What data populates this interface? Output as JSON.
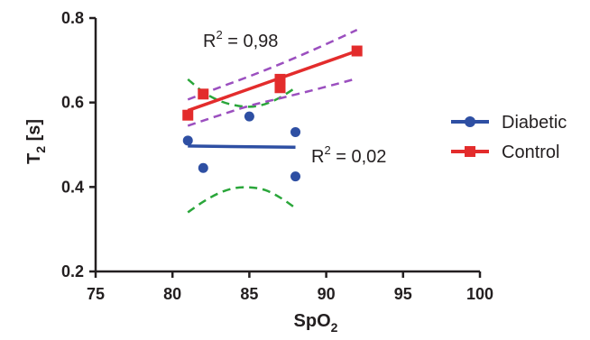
{
  "chart_data": {
    "type": "scatter",
    "xlabel": {
      "main": "SpO",
      "sub": "2"
    },
    "ylabel": {
      "main": "T",
      "sub": "2",
      "suffix": " [s]"
    },
    "xlim": [
      75,
      100
    ],
    "ylim": [
      0.2,
      0.8
    ],
    "x_ticks": [
      75,
      80,
      85,
      90,
      95,
      100
    ],
    "x_tick_labels": [
      "75",
      "80",
      "85",
      "90",
      "95",
      "100"
    ],
    "y_ticks": [
      0.2,
      0.4,
      0.6,
      0.8
    ],
    "y_tick_labels": [
      "0.2",
      "0.4",
      "0.6",
      "0.8"
    ],
    "grid": false,
    "legend_position": "right",
    "series": [
      {
        "name": "Diabetic",
        "marker": "circle",
        "color": "#2e4fa3",
        "points": [
          {
            "x": 81,
            "y": 0.51
          },
          {
            "x": 82,
            "y": 0.445
          },
          {
            "x": 85,
            "y": 0.567
          },
          {
            "x": 88,
            "y": 0.53
          },
          {
            "x": 88,
            "y": 0.425
          }
        ],
        "fit": {
          "x": [
            81,
            88
          ],
          "y": [
            0.497,
            0.494
          ]
        },
        "band_color": "#2aa63a",
        "band_upper": {
          "x": [
            81,
            82,
            83,
            84,
            85,
            86,
            87,
            88
          ],
          "y": [
            0.655,
            0.625,
            0.605,
            0.594,
            0.59,
            0.596,
            0.612,
            0.635
          ]
        },
        "band_lower": {
          "x": [
            81,
            82,
            83,
            84,
            85,
            86,
            87,
            88
          ],
          "y": [
            0.34,
            0.365,
            0.385,
            0.397,
            0.399,
            0.393,
            0.375,
            0.35
          ]
        },
        "r2_label": {
          "prefix": "R",
          "sup": "2",
          "value": " = 0,02"
        }
      },
      {
        "name": "Control",
        "marker": "square",
        "color": "#e32c2c",
        "points": [
          {
            "x": 81,
            "y": 0.57
          },
          {
            "x": 82,
            "y": 0.62
          },
          {
            "x": 87,
            "y": 0.635
          },
          {
            "x": 87,
            "y": 0.655
          },
          {
            "x": 92,
            "y": 0.722
          }
        ],
        "fit": {
          "x": [
            81,
            92
          ],
          "y": [
            0.581,
            0.722
          ]
        },
        "band_color": "#9b4fbf",
        "band_upper": {
          "x": [
            81,
            83,
            85,
            87,
            89,
            91,
            92
          ],
          "y": [
            0.607,
            0.635,
            0.662,
            0.691,
            0.722,
            0.755,
            0.772
          ]
        },
        "band_lower": {
          "x": [
            81,
            83,
            85,
            87,
            89,
            91,
            92
          ],
          "y": [
            0.545,
            0.569,
            0.592,
            0.61,
            0.628,
            0.647,
            0.657
          ]
        },
        "r2_label": {
          "prefix": "R",
          "sup": "2",
          "value": " = 0,98"
        }
      }
    ]
  }
}
